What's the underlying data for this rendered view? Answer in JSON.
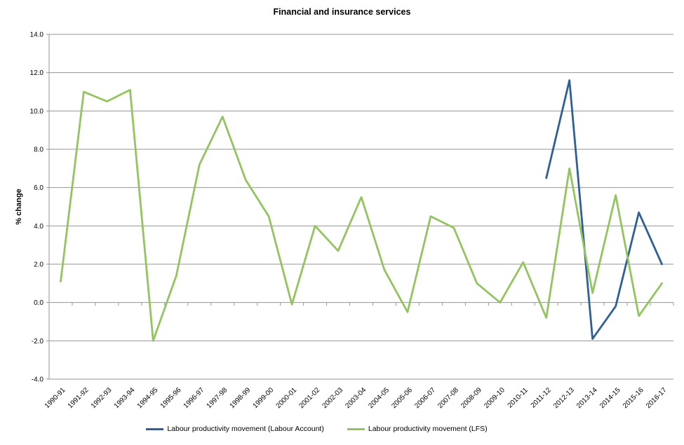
{
  "chart_data": {
    "type": "line",
    "title": "Financial and insurance services",
    "ylabel": "% change",
    "xlabel": "",
    "ylim": [
      -4.0,
      14.0
    ],
    "ytick_labels": [
      "14.0",
      "12.0",
      "10.0",
      "8.0",
      "6.0",
      "4.0",
      "2.0",
      "0.0",
      "-2.0",
      "-4.0"
    ],
    "grid": true,
    "legend_position": "bottom",
    "categories": [
      "1990-91",
      "1991-92",
      "1992-93",
      "1993-94",
      "1994-95",
      "1995-96",
      "1996-97",
      "1997-98",
      "1998-99",
      "1999-00",
      "2000-01",
      "2001-02",
      "2002-03",
      "2003-04",
      "2004-05",
      "2005-06",
      "2006-07",
      "2007-08",
      "2008-09",
      "2009-10",
      "2010-11",
      "2011-12",
      "2012-13",
      "2013-14",
      "2014-15",
      "2015-16",
      "2016-17"
    ],
    "series": [
      {
        "id": "labour-account",
        "name": "Labour productivity movement (Labour Account)",
        "color": "#2E6095",
        "values": [
          null,
          null,
          null,
          null,
          null,
          null,
          null,
          null,
          null,
          null,
          null,
          null,
          null,
          null,
          null,
          null,
          null,
          null,
          null,
          null,
          null,
          6.5,
          11.6,
          -1.9,
          -0.2,
          4.7,
          2.0
        ]
      },
      {
        "id": "lfs",
        "name": "Labour productivity movement (LFS)",
        "color": "#93C45F",
        "values": [
          1.1,
          11.0,
          10.5,
          11.1,
          -2.0,
          1.4,
          7.2,
          9.7,
          6.4,
          4.5,
          -0.1,
          4.0,
          2.7,
          5.5,
          1.7,
          -0.5,
          4.5,
          3.9,
          1.0,
          0.0,
          2.1,
          -0.8,
          7.0,
          0.5,
          5.6,
          -0.7,
          1.0
        ]
      }
    ],
    "colors": {
      "gridline": "#949494",
      "axis": "#949494",
      "text": "#000000",
      "background": "#FFFFFF"
    }
  }
}
